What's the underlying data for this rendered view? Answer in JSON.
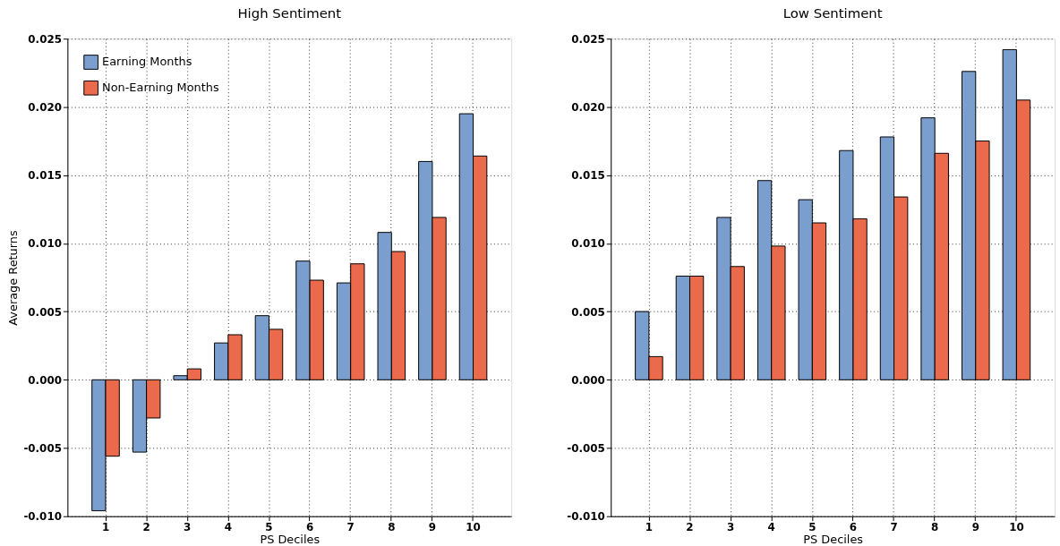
{
  "chart_data": [
    {
      "type": "bar",
      "title": "High Sentiment",
      "xlabel": "PS Deciles",
      "ylabel": "Average Returns",
      "categories": [
        "1",
        "2",
        "3",
        "4",
        "5",
        "6",
        "7",
        "8",
        "9",
        "10"
      ],
      "series": [
        {
          "name": "Earning Months",
          "color": "#7a9fcf",
          "values": [
            -0.0096,
            -0.0053,
            0.0003,
            0.0027,
            0.0047,
            0.0087,
            0.0071,
            0.0108,
            0.016,
            0.0195
          ]
        },
        {
          "name": "Non-Earning Months",
          "color": "#ec6a4c",
          "values": [
            -0.0056,
            -0.0028,
            0.0008,
            0.0033,
            0.0037,
            0.0073,
            0.0085,
            0.0094,
            0.0119,
            0.0164
          ]
        }
      ],
      "ylim": [
        -0.01,
        0.025
      ],
      "yticks": [
        {
          "value": -0.01,
          "label": "-0.010"
        },
        {
          "value": -0.005,
          "label": "-0.005"
        },
        {
          "value": 0,
          "label": "0.000"
        },
        {
          "value": 0.005,
          "label": "0.005"
        },
        {
          "value": 0.01,
          "label": "0.010"
        },
        {
          "value": 0.015,
          "label": "0.015"
        },
        {
          "value": 0.02,
          "label": "0.020"
        },
        {
          "value": 0.025,
          "label": "0.025"
        }
      ],
      "grid": true,
      "legend": "top left"
    },
    {
      "type": "bar",
      "title": "Low Sentiment",
      "xlabel": "PS Deciles",
      "categories": [
        "1",
        "2",
        "3",
        "4",
        "5",
        "6",
        "7",
        "8",
        "9",
        "10"
      ],
      "series": [
        {
          "color": "#7a9fcf",
          "values": [
            0.005,
            0.0076,
            0.0119,
            0.0146,
            0.0132,
            0.0168,
            0.0178,
            0.0192,
            0.0226,
            0.0242
          ]
        },
        {
          "color": "#ec6a4c",
          "values": [
            0.0017,
            0.0076,
            0.0083,
            0.0098,
            0.0115,
            0.0118,
            0.0134,
            0.0166,
            0.0175,
            0.0205
          ]
        }
      ],
      "ylim": [
        -0.01,
        0.025
      ],
      "yticks": [
        {
          "value": -0.01,
          "label": "-0.010"
        },
        {
          "value": -0.005,
          "label": "-0.005"
        },
        {
          "value": 0,
          "label": "0.000"
        },
        {
          "value": 0.005,
          "label": "0.005"
        },
        {
          "value": 0.01,
          "label": "0.010"
        },
        {
          "value": 0.015,
          "label": "0.015"
        },
        {
          "value": 0.02,
          "label": "0.020"
        },
        {
          "value": 0.025,
          "label": "0.025"
        }
      ],
      "grid": true
    }
  ]
}
